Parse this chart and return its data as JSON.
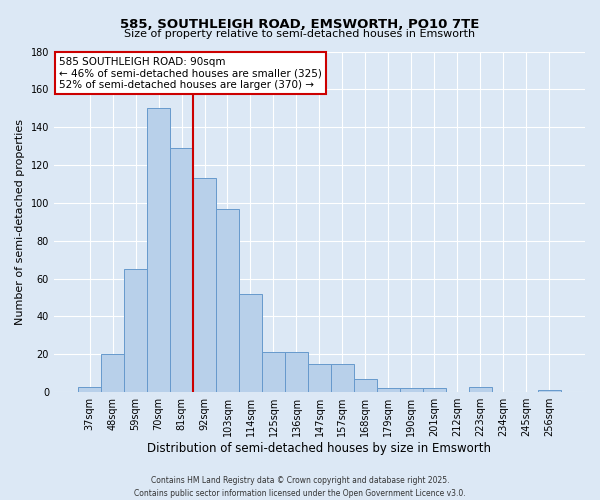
{
  "title": "585, SOUTHLEIGH ROAD, EMSWORTH, PO10 7TE",
  "subtitle": "Size of property relative to semi-detached houses in Emsworth",
  "xlabel": "Distribution of semi-detached houses by size in Emsworth",
  "ylabel": "Number of semi-detached properties",
  "categories": [
    "37sqm",
    "48sqm",
    "59sqm",
    "70sqm",
    "81sqm",
    "92sqm",
    "103sqm",
    "114sqm",
    "125sqm",
    "136sqm",
    "147sqm",
    "157sqm",
    "168sqm",
    "179sqm",
    "190sqm",
    "201sqm",
    "212sqm",
    "223sqm",
    "234sqm",
    "245sqm",
    "256sqm"
  ],
  "bar_values": [
    3,
    20,
    65,
    150,
    129,
    113,
    97,
    52,
    21,
    21,
    15,
    15,
    7,
    2,
    2,
    2,
    0,
    3,
    0,
    0,
    1
  ],
  "bar_color": "#b8d0ea",
  "bar_edge_color": "#6699cc",
  "vline_index": 4.5,
  "vline_color": "#cc0000",
  "annotation_title": "585 SOUTHLEIGH ROAD: 90sqm",
  "annotation_line1": "← 46% of semi-detached houses are smaller (325)",
  "annotation_line2": "52% of semi-detached houses are larger (370) →",
  "annotation_box_color": "#ffffff",
  "annotation_box_edge_color": "#cc0000",
  "ylim": [
    0,
    180
  ],
  "yticks": [
    0,
    20,
    40,
    60,
    80,
    100,
    120,
    140,
    160,
    180
  ],
  "background_color": "#dce8f5",
  "grid_color": "#ffffff",
  "footer_line1": "Contains HM Land Registry data © Crown copyright and database right 2025.",
  "footer_line2": "Contains public sector information licensed under the Open Government Licence v3.0."
}
